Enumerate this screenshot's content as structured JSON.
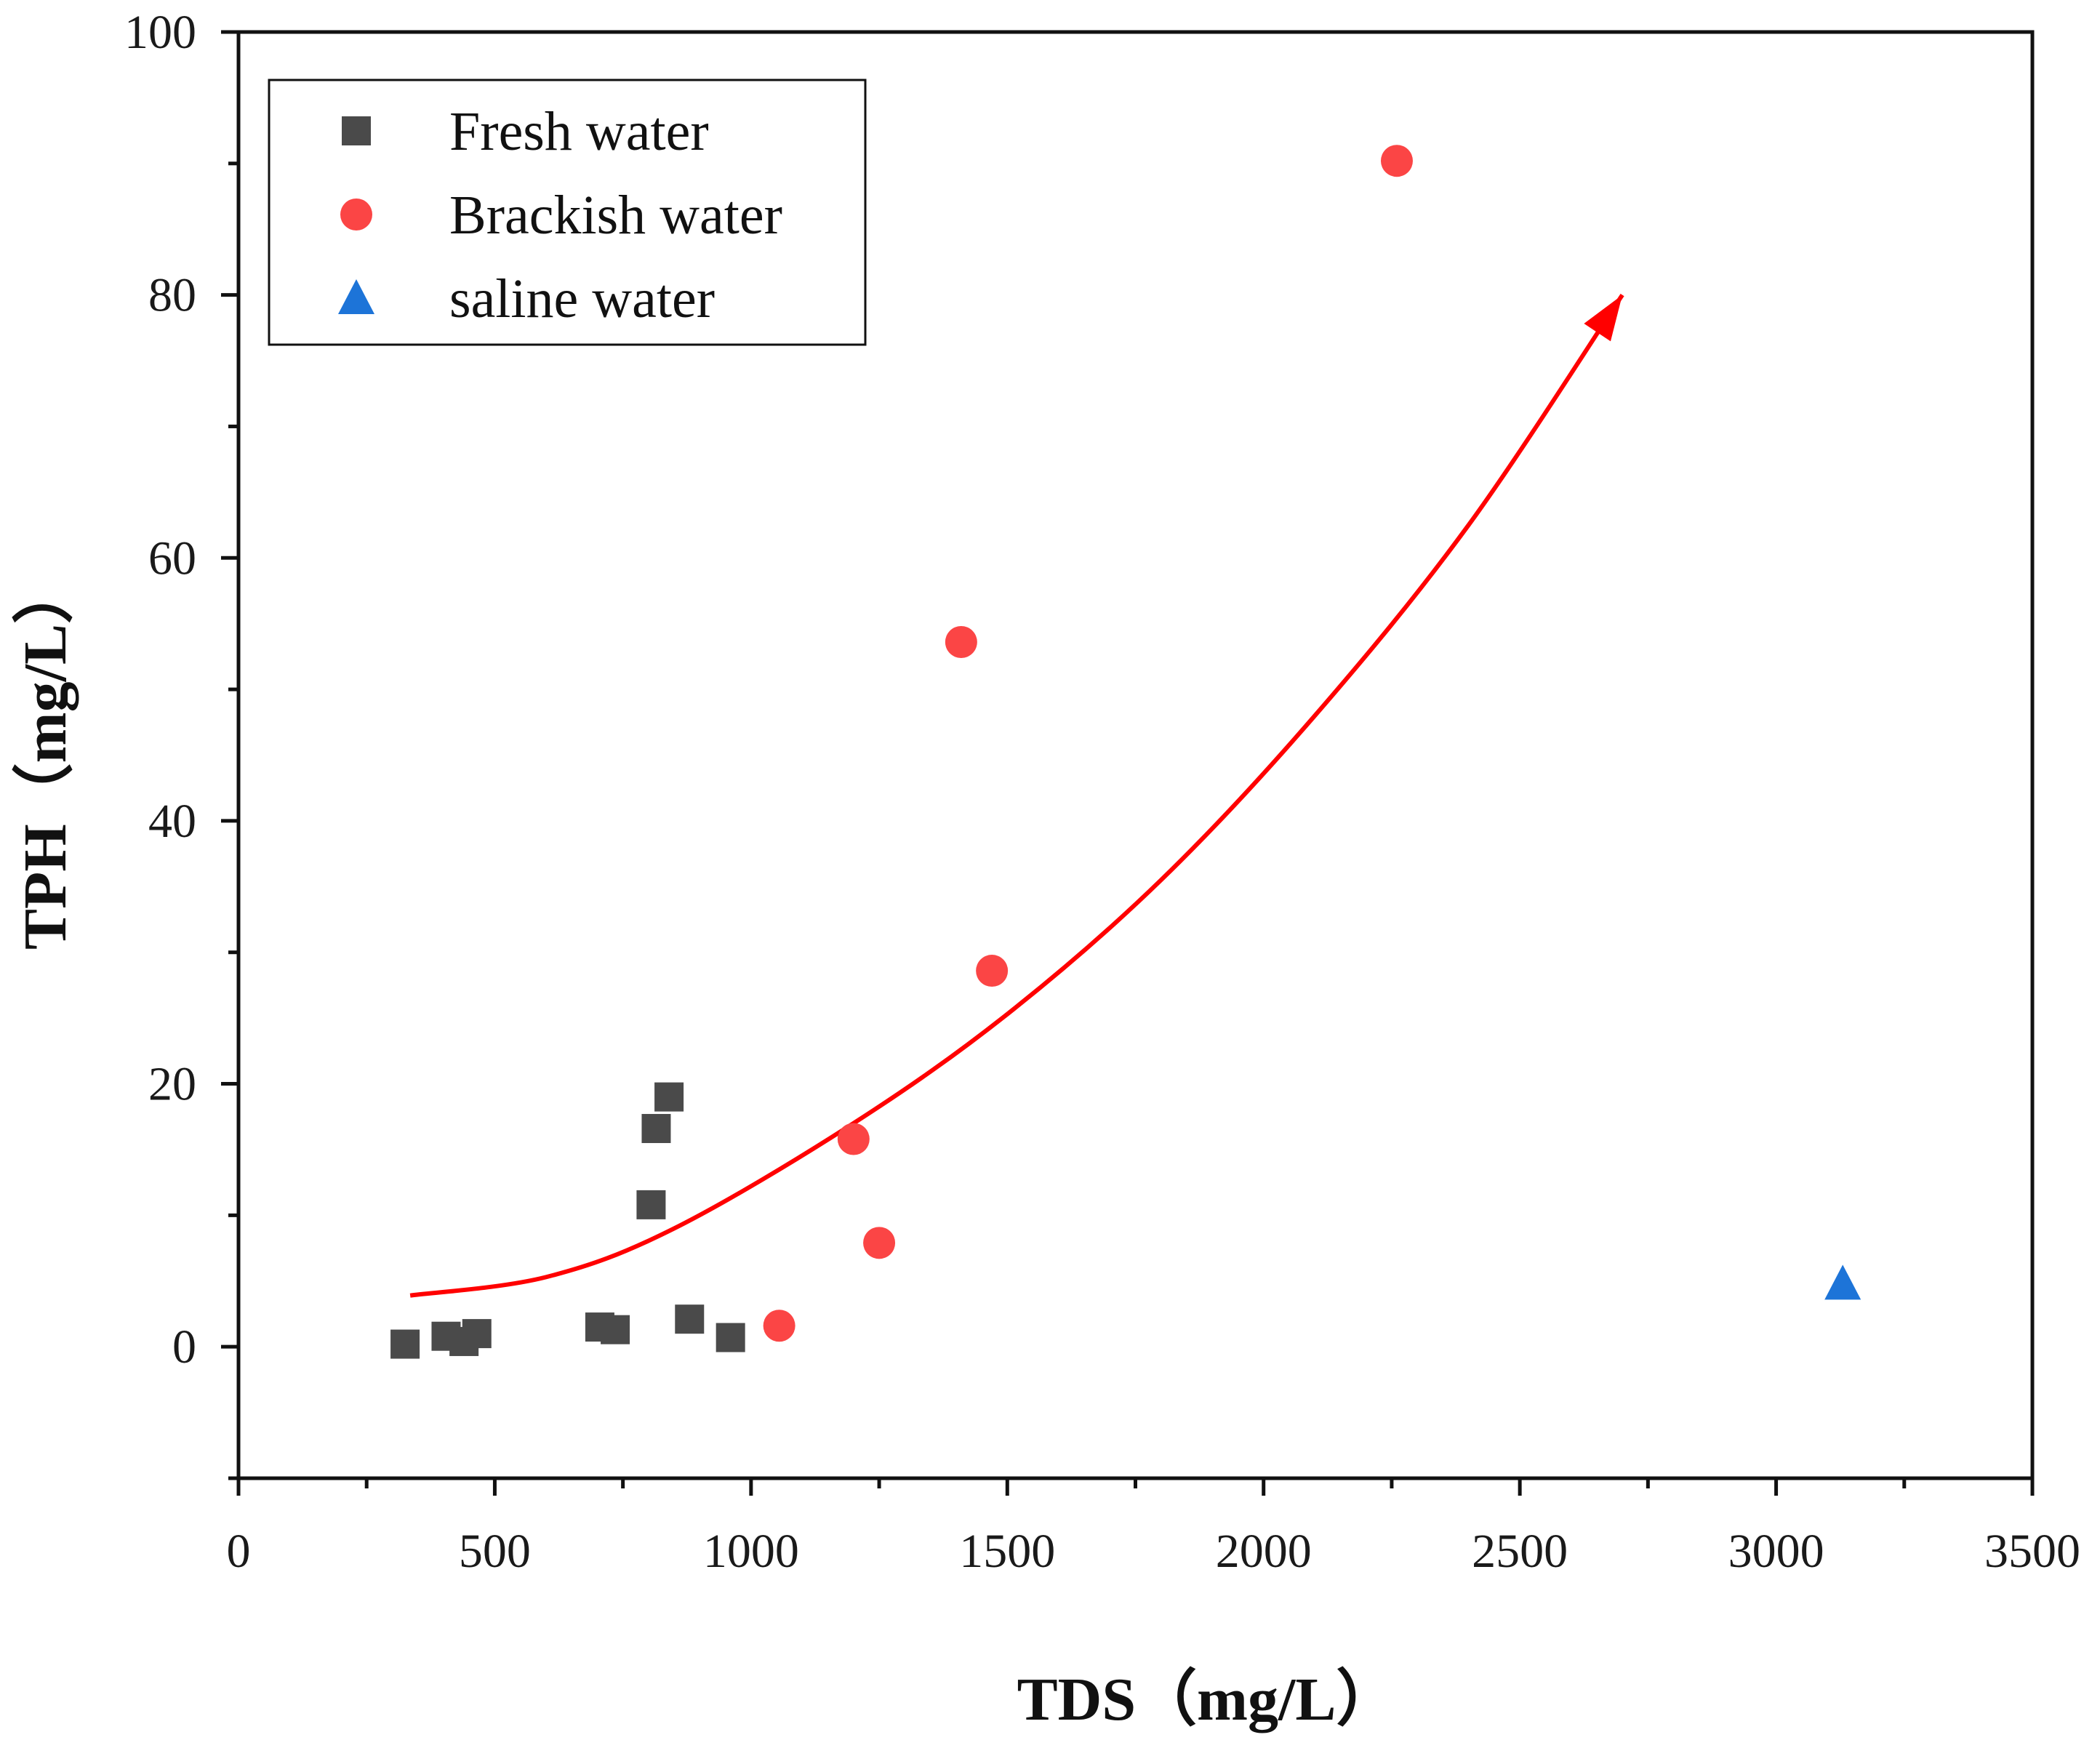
{
  "chart_data": {
    "type": "scatter",
    "title": "",
    "xlabel": "TDS（mg/L）",
    "ylabel": "TPH（mg/L）",
    "xlim": [
      0,
      3500
    ],
    "ylim": [
      -10,
      100
    ],
    "x_ticks": [
      0,
      500,
      1000,
      1500,
      2000,
      2500,
      3000,
      3500
    ],
    "y_ticks": [
      0,
      20,
      40,
      60,
      80,
      100
    ],
    "legend_position": "top-left",
    "series": [
      {
        "name": "Fresh water",
        "marker": "square",
        "color": "#4a4a4a",
        "points": [
          {
            "x": 325,
            "y": 0.2
          },
          {
            "x": 405,
            "y": 0.8
          },
          {
            "x": 440,
            "y": 0.4
          },
          {
            "x": 465,
            "y": 1.0
          },
          {
            "x": 705,
            "y": 1.5
          },
          {
            "x": 735,
            "y": 1.3
          },
          {
            "x": 805,
            "y": 10.8
          },
          {
            "x": 815,
            "y": 16.6
          },
          {
            "x": 840,
            "y": 19.0
          },
          {
            "x": 880,
            "y": 2.1
          },
          {
            "x": 960,
            "y": 0.7
          }
        ]
      },
      {
        "name": "Brackish water",
        "marker": "circle",
        "color": "#fb4545",
        "points": [
          {
            "x": 1055,
            "y": 1.6
          },
          {
            "x": 1200,
            "y": 15.8
          },
          {
            "x": 1250,
            "y": 7.9
          },
          {
            "x": 1410,
            "y": 53.6
          },
          {
            "x": 1470,
            "y": 28.6
          },
          {
            "x": 2260,
            "y": 90.2
          }
        ]
      },
      {
        "name": "saline water",
        "marker": "triangle",
        "color": "#1d74d8",
        "points": [
          {
            "x": 3130,
            "y": 4.8
          }
        ]
      }
    ],
    "trend_line": {
      "color": "#ff0000",
      "arrow": true,
      "points": [
        {
          "x": 335,
          "y": 3.9
        },
        {
          "x": 600,
          "y": 5.3
        },
        {
          "x": 850,
          "y": 9.0
        },
        {
          "x": 1200,
          "y": 17.0
        },
        {
          "x": 1500,
          "y": 25.3
        },
        {
          "x": 1800,
          "y": 35.5
        },
        {
          "x": 2100,
          "y": 48.0
        },
        {
          "x": 2400,
          "y": 62.5
        },
        {
          "x": 2700,
          "y": 80.0
        }
      ]
    }
  }
}
